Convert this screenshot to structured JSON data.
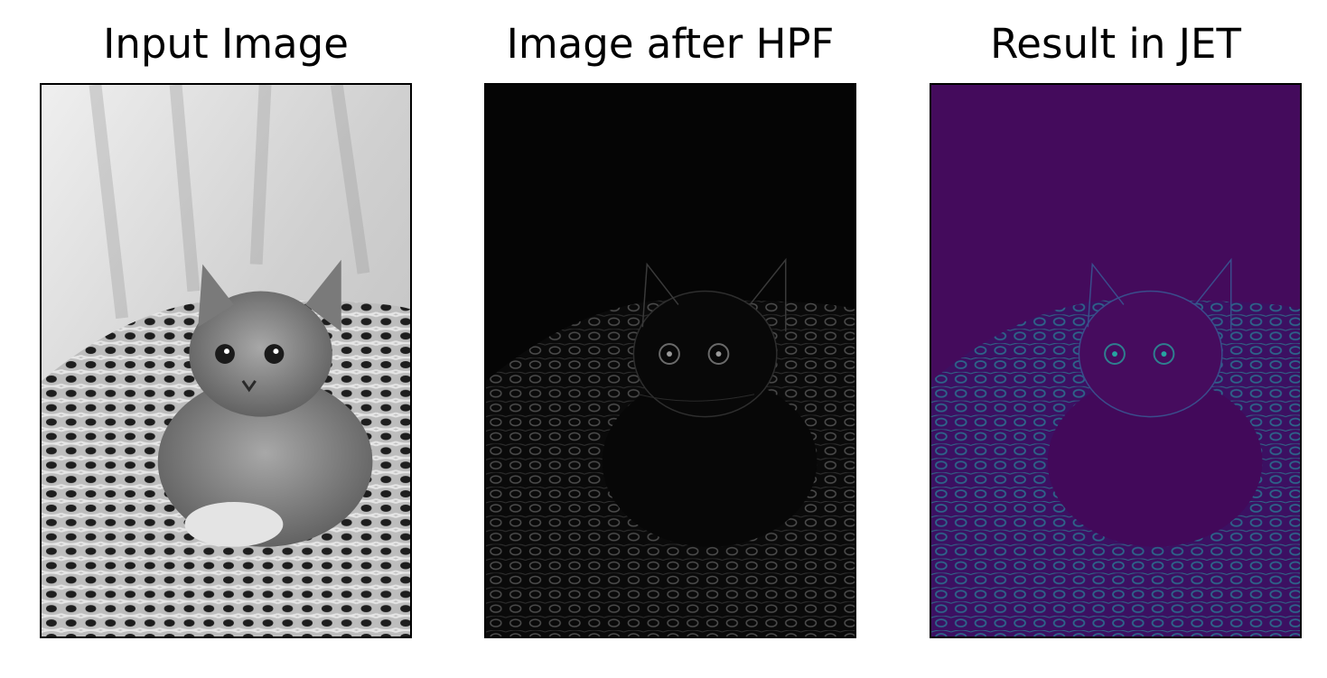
{
  "panels": [
    {
      "title": "Input Image",
      "variant": "grayscale-photo",
      "subject": "kitten-in-woven-basket",
      "colors": {
        "background": "#d9d9d9",
        "subject": "#7a7a7a",
        "texture": "#3a3a3a"
      }
    },
    {
      "title": "Image after HPF",
      "variant": "high-pass-edges",
      "subject": "kitten-in-woven-basket",
      "colors": {
        "background": "#050505",
        "edges": "#6a6a6a"
      }
    },
    {
      "title": "Result in JET",
      "variant": "colormap",
      "subject": "kitten-in-woven-basket",
      "colors": {
        "background": "#3f0b5e",
        "edges": "#2a6f8f",
        "highlight": "#26a3a1"
      }
    }
  ]
}
